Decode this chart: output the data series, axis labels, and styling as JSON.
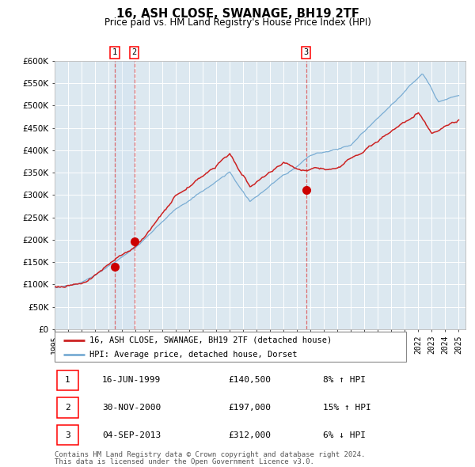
{
  "title": "16, ASH CLOSE, SWANAGE, BH19 2TF",
  "subtitle": "Price paid vs. HM Land Registry's House Price Index (HPI)",
  "ylim": [
    0,
    600000
  ],
  "yticks": [
    0,
    50000,
    100000,
    150000,
    200000,
    250000,
    300000,
    350000,
    400000,
    450000,
    500000,
    550000,
    600000
  ],
  "ytick_labels": [
    "£0",
    "£50K",
    "£100K",
    "£150K",
    "£200K",
    "£250K",
    "£300K",
    "£350K",
    "£400K",
    "£450K",
    "£500K",
    "£550K",
    "£600K"
  ],
  "plot_bg_color": "#dce8f0",
  "hpi_color": "#7aadd4",
  "price_color": "#cc2222",
  "marker_color": "#cc0000",
  "vline_color": "#dd4444",
  "transactions": [
    {
      "id": 1,
      "date_num": 1999.46,
      "price": 140500,
      "label": "1"
    },
    {
      "id": 2,
      "date_num": 2000.92,
      "price": 197000,
      "label": "2"
    },
    {
      "id": 3,
      "date_num": 2013.67,
      "price": 312000,
      "label": "3"
    }
  ],
  "legend_price_label": "16, ASH CLOSE, SWANAGE, BH19 2TF (detached house)",
  "legend_hpi_label": "HPI: Average price, detached house, Dorset",
  "table_rows": [
    {
      "num": "1",
      "date": "16-JUN-1999",
      "price": "£140,500",
      "hpi": "8% ↑ HPI"
    },
    {
      "num": "2",
      "date": "30-NOV-2000",
      "price": "£197,000",
      "hpi": "15% ↑ HPI"
    },
    {
      "num": "3",
      "date": "04-SEP-2013",
      "price": "£312,000",
      "hpi": "6% ↓ HPI"
    }
  ],
  "footnote1": "Contains HM Land Registry data © Crown copyright and database right 2024.",
  "footnote2": "This data is licensed under the Open Government Licence v3.0."
}
